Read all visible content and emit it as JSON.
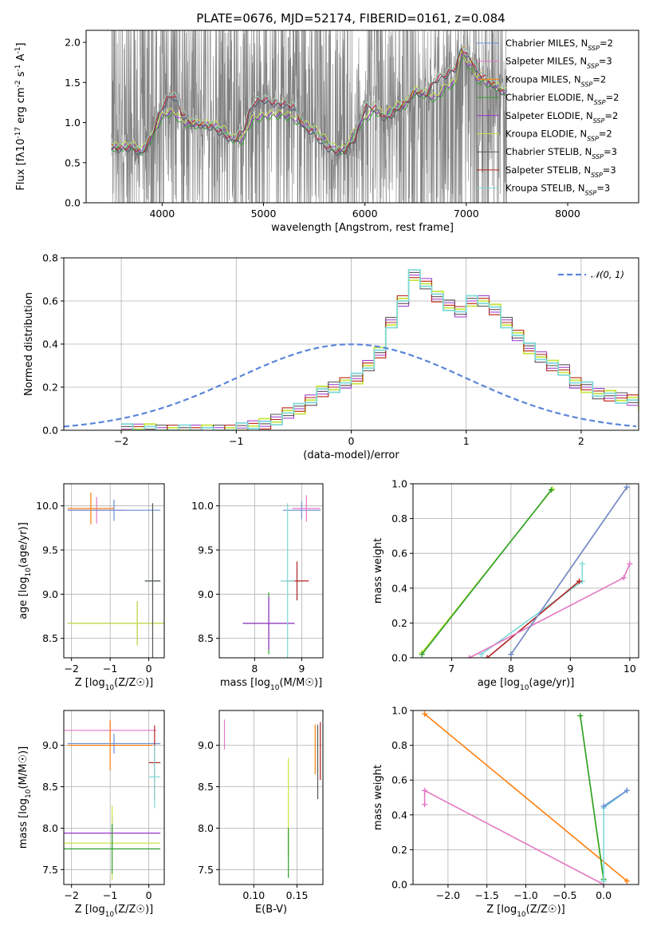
{
  "chart_data": [
    {
      "type": "line",
      "id": "spectrum",
      "title": "PLATE=0676, MJD=52174, FIBERID=0161, z=0.084",
      "xlabel": "wavelength [Angstrom, rest frame]",
      "ylabel": "Flux [f$_\\lambda$10$^{-17}$ erg cm$^{-2}$ s$^{-1}$ A$^{-1}$]",
      "xlim": [
        3250,
        8700
      ],
      "ylim": [
        0,
        2.15
      ],
      "xticks": [
        4000,
        5000,
        6000,
        7000,
        8000
      ],
      "yticks": [
        0.0,
        0.5,
        1.0,
        1.5,
        2.0
      ],
      "data_color": "#808080",
      "data_range": [
        3500,
        7400
      ],
      "series": [
        {
          "name": "Chabrier MILES, N$_{SSP}$=2",
          "color": "#6b8fd6"
        },
        {
          "name": "Salpeter MILES, N$_{SSP}$=3",
          "color": "#e377c2"
        },
        {
          "name": "Kroupa MILES, N$_{SSP}$=2",
          "color": "#ff7f0e"
        },
        {
          "name": "Chabrier ELODIE, N$_{SSP}$=2",
          "color": "#2ca02c"
        },
        {
          "name": "Salpeter ELODIE, N$_{SSP}$=2",
          "color": "#9932cc"
        },
        {
          "name": "Kroupa ELODIE, N$_{SSP}$=2",
          "color": "#c8e640"
        },
        {
          "name": "Chabrier STELIB, N$_{SSP}$=3",
          "color": "#555555"
        },
        {
          "name": "Salpeter STELIB, N$_{SSP}$=3",
          "color": "#b22222"
        },
        {
          "name": "Kroupa STELIB, N$_{SSP}$=3",
          "color": "#7fd8d8"
        }
      ],
      "model_a": {
        "x": [
          3500,
          3600,
          3700,
          3800,
          3900,
          3950,
          4000,
          4050,
          4100,
          4150,
          4200,
          4300,
          4400,
          4500,
          4600,
          4700,
          4800,
          4850,
          4900,
          5000,
          5100,
          5200,
          5300,
          5400,
          5500,
          5600,
          5700,
          5800,
          5900,
          6000,
          6100,
          6200,
          6300,
          6400,
          6500,
          6600,
          6700,
          6800,
          6900,
          6950,
          7000,
          7050,
          7100,
          7200,
          7300,
          7400
        ],
        "y": [
          0.7,
          0.68,
          0.7,
          0.62,
          0.85,
          1.05,
          1.2,
          1.3,
          1.35,
          1.28,
          1.1,
          1.0,
          0.98,
          0.95,
          0.87,
          0.78,
          0.9,
          1.1,
          1.25,
          1.3,
          1.25,
          1.24,
          1.2,
          0.95,
          0.88,
          0.72,
          0.65,
          0.65,
          0.8,
          1.2,
          1.2,
          1.05,
          1.15,
          1.25,
          1.4,
          1.35,
          1.55,
          1.6,
          1.7,
          1.95,
          1.85,
          1.8,
          1.65,
          1.55,
          1.45,
          1.35
        ]
      },
      "model_b": {
        "x": [
          3500,
          3600,
          3700,
          3800,
          3900,
          3950,
          4000,
          4050,
          4100,
          4150,
          4200,
          4300,
          4400,
          4500,
          4600,
          4700,
          4800,
          4850,
          4900,
          5000,
          5100,
          5200,
          5300,
          5400,
          5500,
          5600,
          5700,
          5800,
          5900,
          6000,
          6100,
          6200,
          6300,
          6400,
          6500,
          6600,
          6700,
          6800,
          6900,
          6950,
          7000,
          7050,
          7100,
          7200,
          7300,
          7400
        ],
        "y": [
          0.7,
          0.7,
          0.72,
          0.65,
          0.82,
          0.95,
          1.08,
          1.12,
          1.12,
          1.08,
          1.0,
          0.98,
          0.98,
          0.98,
          0.92,
          0.8,
          0.78,
          0.95,
          1.05,
          1.08,
          1.1,
          1.1,
          1.05,
          0.98,
          0.92,
          0.8,
          0.68,
          0.66,
          0.9,
          1.05,
          1.15,
          1.1,
          1.2,
          1.22,
          1.4,
          1.35,
          1.3,
          1.45,
          1.5,
          1.85,
          1.75,
          1.7,
          1.55,
          1.5,
          1.45,
          1.38
        ]
      }
    },
    {
      "type": "line",
      "id": "residuals",
      "xlabel": "(data-model)/error",
      "ylabel": "Normed distribution",
      "xlim": [
        -2.5,
        2.5
      ],
      "ylim": [
        0,
        0.8
      ],
      "xticks": [
        -2,
        -1,
        0,
        1,
        2
      ],
      "yticks": [
        0.0,
        0.2,
        0.4,
        0.6,
        0.8
      ],
      "legend": "$\\mathcal{N}(0, 1)$",
      "legend_color": "#5b85d9",
      "hist_edges_start": -2.0,
      "hist_bin_width": 0.1,
      "hist_values": [
        0.005,
        0.005,
        0.005,
        0,
        0,
        0,
        0,
        0,
        0,
        0,
        0.01,
        0.02,
        0.03,
        0.05,
        0.08,
        0.1,
        0.14,
        0.18,
        0.2,
        0.22,
        0.24,
        0.3,
        0.36,
        0.5,
        0.6,
        0.72,
        0.68,
        0.62,
        0.58,
        0.55,
        0.6,
        0.6,
        0.56,
        0.5,
        0.44,
        0.38,
        0.34,
        0.3,
        0.28,
        0.22,
        0.2,
        0.17,
        0.16,
        0.15,
        0.14,
        0.12,
        0.1,
        0.09,
        0.08,
        0.06,
        0.05,
        0.04,
        0.035,
        0.03,
        0.025,
        0.02,
        0.015,
        0.01,
        0.005,
        0.005
      ]
    },
    {
      "type": "scatter",
      "id": "age-vs-Z",
      "xlabel": "Z [log$_{10}$(Z/Z$_\\odot$)]",
      "ylabel": "age  [log$_{10}$(age/yr)]",
      "xlim": [
        -2.2,
        0.4
      ],
      "ylim": [
        8.28,
        10.25
      ],
      "xticks": [
        -2,
        -1,
        0
      ],
      "yticks": [
        8.5,
        9.0,
        9.5,
        10.0
      ],
      "points": [
        {
          "x": -1.35,
          "y": 9.95,
          "xerr": 0.75,
          "yerr": 0.15,
          "color": "#e377c2"
        },
        {
          "x": -0.9,
          "y": 9.95,
          "xerr": 1.2,
          "yerr": 0.12,
          "color": "#6b8fd6"
        },
        {
          "x": -1.5,
          "y": 9.97,
          "xerr": 0.6,
          "yerr": 0.18,
          "color": "#ff7f0e"
        },
        {
          "x": -0.3,
          "y": 8.67,
          "xerr": 1.8,
          "yerr": 0.25,
          "color": "#9932cc"
        },
        {
          "x": -0.3,
          "y": 8.67,
          "xerr": 1.8,
          "yerr": 0.25,
          "color": "#c8e640"
        },
        {
          "x": 0.1,
          "y": 9.15,
          "xerr": 0.2,
          "yerr": 0.22,
          "color": "#7fd8d8"
        },
        {
          "x": 0.1,
          "y": 9.15,
          "xerr": 0.2,
          "yerr": 0.88,
          "color": "#555555"
        }
      ]
    },
    {
      "type": "scatter",
      "id": "age-vs-mass",
      "xlabel": "mass [log$_{10}$(M/M$_\\odot$)]",
      "ylabel": "",
      "xlim": [
        7.25,
        9.45
      ],
      "ylim": [
        8.28,
        10.25
      ],
      "xticks": [
        8,
        9
      ],
      "yticks": [
        8.5,
        9.0,
        9.5,
        10.0
      ],
      "points": [
        {
          "x": 9.0,
          "y": 9.95,
          "xerr": 0.4,
          "yerr": 0.1,
          "color": "#6b8fd6"
        },
        {
          "x": 9.1,
          "y": 9.97,
          "xerr": 0.3,
          "yerr": 0.15,
          "color": "#e377c2"
        },
        {
          "x": 8.3,
          "y": 8.67,
          "xerr": 0.55,
          "yerr": 0.35,
          "color": "#2ca02c"
        },
        {
          "x": 8.3,
          "y": 8.67,
          "xerr": 0.55,
          "yerr": 0.3,
          "color": "#9932cc"
        },
        {
          "x": 8.9,
          "y": 9.15,
          "xerr": 0.25,
          "yerr": 0.22,
          "color": "#b22222"
        },
        {
          "x": 8.7,
          "y": 9.15,
          "xerr": 0.15,
          "yerr": 0.88,
          "color": "#7fd8d8"
        }
      ]
    },
    {
      "type": "line",
      "id": "massweight-vs-age",
      "xlabel": "age  [log$_{10}$(age/yr)]",
      "ylabel": "mass weight",
      "xlim": [
        6.35,
        10.15
      ],
      "ylim": [
        0,
        1
      ],
      "xticks": [
        7,
        8,
        9,
        10
      ],
      "yticks": [
        0.0,
        0.2,
        0.4,
        0.6,
        0.8,
        1.0
      ],
      "series": [
        {
          "color": "#c8e640",
          "x": [
            6.5,
            8.7
          ],
          "y": [
            0.03,
            0.97
          ]
        },
        {
          "color": "#2ca02c",
          "x": [
            6.5,
            8.68
          ],
          "y": [
            0.02,
            0.965
          ]
        },
        {
          "color": "#7fd8d8",
          "x": [
            7.5,
            9.2,
            9.2
          ],
          "y": [
            0.02,
            0.44,
            0.54
          ]
        },
        {
          "color": "#b22222",
          "x": [
            7.6,
            9.15
          ],
          "y": [
            0.0,
            0.44
          ]
        },
        {
          "color": "#e377c2",
          "x": [
            7.3,
            9.9,
            10.0
          ],
          "y": [
            0.0,
            0.46,
            0.54
          ]
        },
        {
          "color": "#ff7f0e",
          "x": [
            8.0,
            9.95
          ],
          "y": [
            0.02,
            0.98
          ]
        },
        {
          "color": "#6b8fd6",
          "x": [
            8.0,
            9.95
          ],
          "y": [
            0.02,
            0.98
          ]
        }
      ]
    },
    {
      "type": "scatter",
      "id": "mass-vs-Z",
      "xlabel": "Z [log$_{10}$(Z/Z$_\\odot$)]",
      "ylabel": "mass [log$_{10}$(M/M$_\\odot$)]",
      "xlim": [
        -2.2,
        0.4
      ],
      "ylim": [
        7.32,
        9.42
      ],
      "xticks": [
        -2,
        -1,
        0
      ],
      "yticks": [
        7.5,
        8.0,
        8.5,
        9.0
      ],
      "points": [
        {
          "x": -1.0,
          "y": 9.18,
          "xerr": 1.2,
          "yerr": 0.12,
          "color": "#e377c2"
        },
        {
          "x": -0.9,
          "y": 9.02,
          "xerr": 1.2,
          "yerr": 0.12,
          "color": "#6b8fd6"
        },
        {
          "x": -1.0,
          "y": 9.0,
          "xerr": 1.1,
          "yerr": 0.3,
          "color": "#ff7f0e"
        },
        {
          "x": -0.95,
          "y": 7.94,
          "xerr": 1.25,
          "yerr": 0.2,
          "color": "#9932cc"
        },
        {
          "x": -0.95,
          "y": 7.82,
          "xerr": 1.25,
          "yerr": 0.45,
          "color": "#c8e640"
        },
        {
          "x": -0.95,
          "y": 7.75,
          "xerr": 1.25,
          "yerr": 0.3,
          "color": "#2ca02c"
        },
        {
          "x": 0.15,
          "y": 8.79,
          "xerr": 0.15,
          "yerr": 0.45,
          "color": "#b22222"
        },
        {
          "x": 0.15,
          "y": 8.62,
          "xerr": 0.15,
          "yerr": 0.38,
          "color": "#7fd8d8"
        }
      ]
    },
    {
      "type": "scatter",
      "id": "mass-vs-ebv",
      "xlabel": "E(B-V)",
      "ylabel": "",
      "xlim": [
        0.06,
        0.18
      ],
      "ylim": [
        7.32,
        9.42
      ],
      "xticks": [
        0.1,
        0.15
      ],
      "yticks": [
        7.5,
        8.0,
        8.5,
        9.0
      ],
      "points": [
        {
          "x": 0.066,
          "y": 9.13,
          "xerr": 0,
          "yerr": 0.18,
          "color": "#e377c2"
        },
        {
          "x": 0.14,
          "y": 8.25,
          "xerr": 0,
          "yerr": 0.6,
          "color": "#c8e640"
        },
        {
          "x": 0.14,
          "y": 7.7,
          "xerr": 0,
          "yerr": 0.3,
          "color": "#2ca02c"
        },
        {
          "x": 0.171,
          "y": 8.95,
          "xerr": 0,
          "yerr": 0.3,
          "color": "#ff7f0e"
        },
        {
          "x": 0.174,
          "y": 8.8,
          "xerr": 0,
          "yerr": 0.45,
          "color": "#555555"
        },
        {
          "x": 0.177,
          "y": 8.93,
          "xerr": 0,
          "yerr": 0.35,
          "color": "#b22222"
        }
      ]
    },
    {
      "type": "line",
      "id": "massweight-vs-Z",
      "xlabel": "Z [log$_{10}$(Z/Z$_\\odot$)]",
      "ylabel": "mass weight",
      "xlim": [
        -2.45,
        0.45
      ],
      "ylim": [
        0,
        1
      ],
      "xticks": [
        -2.0,
        -1.5,
        -1.0,
        -0.5,
        0.0
      ],
      "yticks": [
        0.0,
        0.2,
        0.4,
        0.6,
        0.8,
        1.0
      ],
      "series": [
        {
          "color": "#e377c2",
          "x": [
            -2.3,
            -2.3,
            0.0
          ],
          "y": [
            0.46,
            0.54,
            0.0
          ]
        },
        {
          "color": "#ff7f0e",
          "x": [
            -2.3,
            0.3
          ],
          "y": [
            0.98,
            0.02
          ]
        },
        {
          "color": "#c8e640",
          "x": [
            -0.3,
            0.0
          ],
          "y": [
            0.97,
            0.02
          ]
        },
        {
          "color": "#2ca02c",
          "x": [
            -0.3,
            0.0
          ],
          "y": [
            0.97,
            0.03
          ]
        },
        {
          "color": "#7fd8d8",
          "x": [
            0.0,
            0.0,
            0.3
          ],
          "y": [
            0.02,
            0.44,
            0.54
          ]
        },
        {
          "color": "#6b8fd6",
          "x": [
            0.0,
            0.3
          ],
          "y": [
            0.45,
            0.54
          ]
        }
      ]
    }
  ]
}
